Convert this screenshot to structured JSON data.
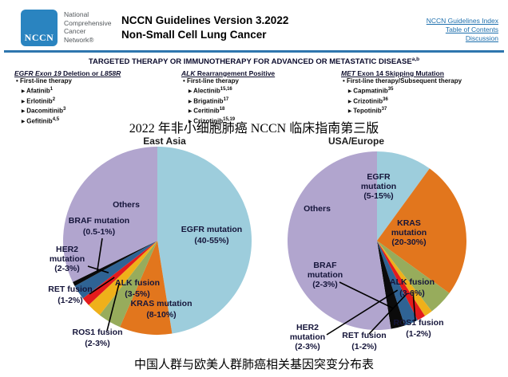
{
  "header": {
    "logo_acronym": "NCCN",
    "org_lines": [
      "National",
      "Comprehensive",
      "Cancer",
      "Network®"
    ],
    "title_line1": "NCCN Guidelines Version 3.2022",
    "title_line2": "Non-Small Cell Lung Cancer",
    "links": [
      "NCCN Guidelines Index",
      "Table of Contents",
      "Discussion"
    ]
  },
  "banner": {
    "text": "TARGETED THERAPY OR IMMUNOTHERAPY FOR ADVANCED OR METASTATIC DISEASE",
    "superscript": "a,b"
  },
  "therapy_columns": [
    {
      "heading_parts": [
        {
          "text": "EGFR Exon 19",
          "italic": true
        },
        {
          "text": " Deletion or ",
          "italic": false
        },
        {
          "text": "L858R",
          "italic": true
        }
      ],
      "subheading": "First-line therapy",
      "drugs": [
        {
          "name": "Afatinib",
          "sup": "1"
        },
        {
          "name": "Erlotinib",
          "sup": "2"
        },
        {
          "name": "Dacomitinib",
          "sup": "3"
        },
        {
          "name": "Gefitinib",
          "sup": "4,5"
        }
      ]
    },
    {
      "heading_parts": [
        {
          "text": "ALK",
          "italic": true
        },
        {
          "text": " Rearrangement Positive",
          "italic": false
        }
      ],
      "subheading": "First-line therapy",
      "drugs": [
        {
          "name": "Alectinib",
          "sup": "15,16"
        },
        {
          "name": "Brigatinib",
          "sup": "17"
        },
        {
          "name": "Ceritinib",
          "sup": "18"
        },
        {
          "name": "Crizotinib",
          "sup": "15,19"
        }
      ]
    },
    {
      "heading_parts": [
        {
          "text": "MET",
          "italic": true
        },
        {
          "text": " Exon 14 Skipping Mutation",
          "italic": false
        }
      ],
      "subheading": "First-line therapy/Subsequent therapy",
      "drugs": [
        {
          "name": "Capmatinib",
          "sup": "35"
        },
        {
          "name": "Crizotinib",
          "sup": "36"
        },
        {
          "name": "Tepotinib",
          "sup": "37"
        }
      ]
    }
  ],
  "caption_top": "2022 年非小细胞肺癌 NCCN 临床指南第三版",
  "caption_bottom": "中国人群与欧美人群肺癌相关基因突变分布表",
  "chart_data": [
    {
      "type": "pie",
      "title": "East Asia",
      "legend_position": "labels-on-chart",
      "slices": [
        {
          "label": "EGFR mutation",
          "range": "40-55%",
          "value": 47.5,
          "color": "#9dcddc"
        },
        {
          "label": "KRAS mutation",
          "range": "8-10%",
          "value": 9,
          "color": "#e2761d"
        },
        {
          "label": "ALK fusion",
          "range": "3-5%",
          "value": 4,
          "color": "#97ac5c"
        },
        {
          "label": "ROS1 fusion",
          "range": "2-3%",
          "value": 2.5,
          "color": "#efb01a"
        },
        {
          "label": "RET fusion",
          "range": "1-2%",
          "value": 1.5,
          "color": "#e41a1c"
        },
        {
          "label": "HER2 mutation",
          "range": "2-3%",
          "value": 2.5,
          "color": "#2f6394"
        },
        {
          "label": "BRAF mutation",
          "range": "0.5-1%",
          "value": 0.75,
          "color": "#0b0b0b"
        },
        {
          "label": "Others",
          "range": "",
          "value": 32.25,
          "color": "#b1a5ce"
        }
      ]
    },
    {
      "type": "pie",
      "title": "USA/Europe",
      "legend_position": "labels-on-chart",
      "slices": [
        {
          "label": "EGFR mutation",
          "range": "5-15%",
          "value": 10,
          "color": "#9dcddc"
        },
        {
          "label": "KRAS mutation",
          "range": "20-30%",
          "value": 25,
          "color": "#e2761d"
        },
        {
          "label": "ALK fusion",
          "range": "3-6%",
          "value": 4.5,
          "color": "#97ac5c"
        },
        {
          "label": "ROS1 fusion",
          "range": "1-2%",
          "value": 1.5,
          "color": "#efb01a"
        },
        {
          "label": "RET fusion",
          "range": "1-2%",
          "value": 1.5,
          "color": "#e41a1c"
        },
        {
          "label": "HER2 mutation",
          "range": "2-3%",
          "value": 2.5,
          "color": "#2f6394"
        },
        {
          "label": "BRAF mutation",
          "range": "2-3%",
          "value": 2.5,
          "color": "#0b0b0b"
        },
        {
          "label": "Others",
          "range": "",
          "value": 52.5,
          "color": "#b1a5ce"
        }
      ]
    }
  ]
}
